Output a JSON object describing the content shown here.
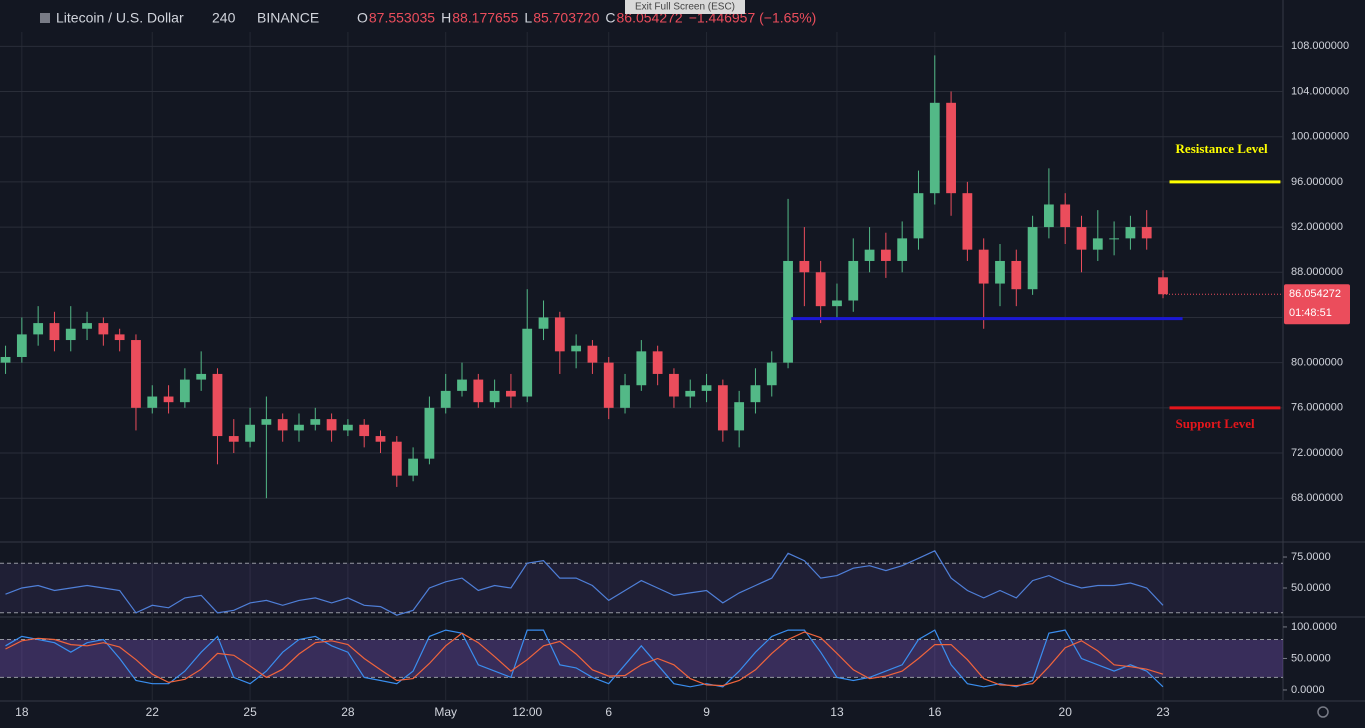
{
  "header": {
    "symbol": "Litecoin / U.S. Dollar",
    "interval": "240",
    "exchange": "BINANCE",
    "ohlc": [
      {
        "label": "O",
        "value": "87.553035"
      },
      {
        "label": "H",
        "value": "88.177655"
      },
      {
        "label": "L",
        "value": "85.703720"
      },
      {
        "label": "C",
        "value": "86.054272"
      }
    ],
    "change": "−1.446957 (−1.65%)",
    "overlay": "Exit Full Screen (ESC)"
  },
  "chart_data": {
    "type": "candlestick",
    "x": [
      -0.5,
      0,
      0.5,
      1,
      1.5,
      2,
      2.5,
      3,
      3.5,
      4,
      4.5,
      5,
      5.5,
      6,
      6.5,
      7,
      7.5,
      8,
      8.5,
      9,
      9.5,
      10,
      10.5,
      11,
      11.5,
      12,
      12.5,
      13,
      13.5,
      14,
      14.5,
      15,
      15.5,
      16,
      16.5,
      17,
      17.5,
      18,
      18.5,
      19,
      19.5,
      20,
      20.5,
      21,
      21.5,
      22,
      22.5,
      23,
      23.5,
      24,
      24.5,
      25,
      25.5,
      26,
      26.5,
      27,
      27.5,
      28,
      28.5,
      29,
      29.5,
      30,
      30.5,
      31,
      31.5,
      32,
      32.5,
      33,
      33.5,
      34,
      34.5,
      35
    ],
    "open": [
      80,
      80.5,
      82.5,
      83.5,
      82,
      83,
      83.5,
      82.5,
      82,
      76,
      77,
      76.5,
      78.5,
      79,
      73.5,
      73,
      74.5,
      75,
      74,
      74.5,
      75,
      74,
      74.5,
      73.5,
      73,
      70,
      71.5,
      76,
      77.5,
      78.5,
      76.5,
      77.5,
      77,
      83,
      84,
      81,
      81.5,
      80,
      76,
      78,
      81,
      79,
      77,
      77.5,
      78,
      74,
      76.5,
      78,
      80,
      89,
      88,
      85,
      85.5,
      89,
      90,
      89,
      91,
      95,
      103,
      95,
      90,
      87,
      89,
      86.5,
      92,
      94,
      92,
      90,
      91,
      91,
      92,
      87.553035
    ],
    "high": [
      81.5,
      84,
      85,
      84.5,
      85,
      84.5,
      84,
      83,
      82.5,
      78,
      78,
      79.5,
      81,
      79.5,
      75,
      76,
      77,
      75.5,
      75.5,
      76,
      75.5,
      75,
      75,
      74,
      73.5,
      72.5,
      77,
      79,
      80,
      79,
      78.5,
      79,
      86.5,
      85.5,
      84.5,
      82.5,
      82,
      80.5,
      79,
      82,
      81.5,
      79.5,
      78.5,
      79,
      78.5,
      77.5,
      79.5,
      81,
      94.5,
      92,
      89,
      87,
      91,
      92,
      91.5,
      92.5,
      97,
      107.2,
      104,
      96,
      91,
      90.5,
      90,
      93,
      97.2,
      95,
      93,
      93.5,
      92.5,
      93,
      93.5,
      88.177655
    ],
    "low": [
      79,
      80,
      81.5,
      81,
      81,
      82,
      81.5,
      81,
      74,
      75.5,
      75.5,
      76,
      77.5,
      71,
      72,
      72.5,
      68,
      73,
      73,
      74,
      73,
      73.5,
      72.5,
      72,
      69,
      69.5,
      71,
      75.5,
      77,
      76,
      76,
      76,
      76.5,
      82,
      79,
      79.5,
      79,
      75,
      75.5,
      77.5,
      78,
      76,
      76,
      76.5,
      73,
      72.5,
      75.5,
      77,
      79.5,
      85,
      83.5,
      84,
      84.5,
      88,
      87.5,
      88,
      90,
      94,
      93,
      89,
      83,
      85,
      85,
      86,
      91,
      90.5,
      88,
      89,
      89.5,
      90,
      90,
      85.70372
    ],
    "close": [
      80.5,
      82.5,
      83.5,
      82,
      83,
      83.5,
      82.5,
      82,
      76,
      77,
      76.5,
      78.5,
      79,
      73.5,
      73,
      74.5,
      75,
      74,
      74.5,
      75,
      74,
      74.5,
      73.5,
      73,
      70,
      71.5,
      76,
      77.5,
      78.5,
      76.5,
      77.5,
      77,
      83,
      84,
      81,
      81.5,
      80,
      76,
      78,
      81,
      79,
      77,
      77.5,
      78,
      74,
      76.5,
      78,
      80,
      89,
      88,
      85,
      85.5,
      89,
      90,
      89,
      91,
      95,
      103,
      95,
      90,
      87,
      89,
      86.5,
      92,
      94,
      92,
      90,
      91,
      91,
      92,
      91,
      86.054272
    ],
    "up_color": "#53b987",
    "down_color": "#eb4d5c",
    "countdown": "01:48:51",
    "xlim": [
      -0.67,
      38.68
    ],
    "xticks": [
      {
        "value": 0,
        "label": "18"
      },
      {
        "value": 4,
        "label": "22"
      },
      {
        "value": 7,
        "label": "25"
      },
      {
        "value": 10,
        "label": "28"
      },
      {
        "value": 13,
        "label": "May"
      },
      {
        "value": 15.5,
        "label": "12:00"
      },
      {
        "value": 18,
        "label": "6"
      },
      {
        "value": 21,
        "label": "9"
      },
      {
        "value": 25,
        "label": "13"
      },
      {
        "value": 28,
        "label": "16"
      },
      {
        "value": 32,
        "label": "20"
      },
      {
        "value": 35,
        "label": "23"
      }
    ],
    "ylim": [
      64.3,
      112.1
    ],
    "yticks": [
      {
        "value": 68,
        "label": "68.000000"
      },
      {
        "value": 72,
        "label": "72.000000"
      },
      {
        "value": 76,
        "label": "76.000000"
      },
      {
        "value": 80,
        "label": "80.000000"
      },
      {
        "value": 84,
        "label": "84.000000"
      },
      {
        "value": 88,
        "label": "88.000000"
      },
      {
        "value": 92,
        "label": "92.000000"
      },
      {
        "value": 96,
        "label": "96.000000"
      },
      {
        "value": 100,
        "label": "100.000000"
      },
      {
        "value": 104,
        "label": "104.000000"
      },
      {
        "value": 108,
        "label": "108.000000"
      }
    ],
    "grid": true,
    "levels": [
      {
        "label": "Resistance Level",
        "value": 96,
        "color": "#ffff00",
        "x_range": [
          35.2,
          38.6
        ]
      },
      {
        "label": "Support Level",
        "value": 76,
        "color": "#e5161c",
        "x_range": [
          35.2,
          38.6
        ]
      },
      {
        "value": 83.9,
        "color": "#1b17d6",
        "x_range": [
          23.6,
          35.6
        ]
      }
    ],
    "panels": [
      {
        "ylim": [
          28.2,
          84.7
        ],
        "yticks": [
          {
            "value": 75,
            "label": "75.0000"
          },
          {
            "value": 50,
            "label": "50.0000"
          }
        ],
        "bands": [
          30,
          70
        ],
        "band_fill": "rgba(126,87,194,0.12)",
        "series": [
          {
            "color": "#4f7fd8",
            "values": [
              45,
              50,
              52,
              48,
              50,
              52,
              50,
              48,
              30,
              36,
              34,
              42,
              44,
              30,
              32,
              38,
              40,
              36,
              40,
              42,
              38,
              42,
              36,
              35,
              28,
              32,
              50,
              55,
              58,
              48,
              52,
              50,
              70,
              72,
              58,
              58,
              52,
              40,
              48,
              56,
              50,
              44,
              46,
              48,
              38,
              46,
              52,
              58,
              78,
              72,
              58,
              60,
              66,
              68,
              64,
              68,
              74,
              80,
              58,
              48,
              42,
              48,
              42,
              56,
              60,
              54,
              50,
              52,
              52,
              54,
              50,
              36
            ]
          }
        ]
      },
      {
        "ylim": [
          -15.9,
          111
        ],
        "yticks": [
          {
            "value": 100,
            "label": "100.0000"
          },
          {
            "value": 50,
            "label": "50.0000"
          },
          {
            "value": 0,
            "label": "0.0000"
          }
        ],
        "bands": [
          20,
          80
        ],
        "band_fill": "rgba(126,87,194,0.35)",
        "series": [
          {
            "color": "#3a8eef",
            "values": [
              70,
              85,
              80,
              75,
              60,
              75,
              80,
              50,
              15,
              10,
              10,
              30,
              60,
              85,
              20,
              10,
              30,
              60,
              80,
              85,
              70,
              60,
              20,
              15,
              10,
              30,
              85,
              95,
              90,
              40,
              30,
              20,
              95,
              95,
              40,
              35,
              20,
              10,
              40,
              70,
              40,
              10,
              5,
              10,
              5,
              30,
              60,
              85,
              95,
              95,
              60,
              20,
              15,
              20,
              30,
              40,
              80,
              95,
              40,
              10,
              5,
              10,
              5,
              15,
              90,
              95,
              50,
              40,
              30,
              40,
              30,
              5
            ]
          },
          {
            "color": "#f0643c",
            "values": [
              65,
              78,
              82,
              80,
              72,
              70,
              75,
              68,
              48,
              25,
              12,
              17,
              33,
              58,
              55,
              38,
              20,
              33,
              57,
              75,
              78,
              72,
              50,
              32,
              15,
              18,
              42,
              70,
              90,
              75,
              53,
              30,
              48,
              70,
              77,
              57,
              32,
              22,
              23,
              40,
              50,
              40,
              18,
              8,
              7,
              15,
              32,
              58,
              80,
              92,
              83,
              58,
              32,
              18,
              22,
              30,
              50,
              72,
              72,
              48,
              18,
              8,
              7,
              10,
              37,
              67,
              78,
              62,
              40,
              37,
              33,
              25
            ]
          }
        ]
      }
    ]
  }
}
